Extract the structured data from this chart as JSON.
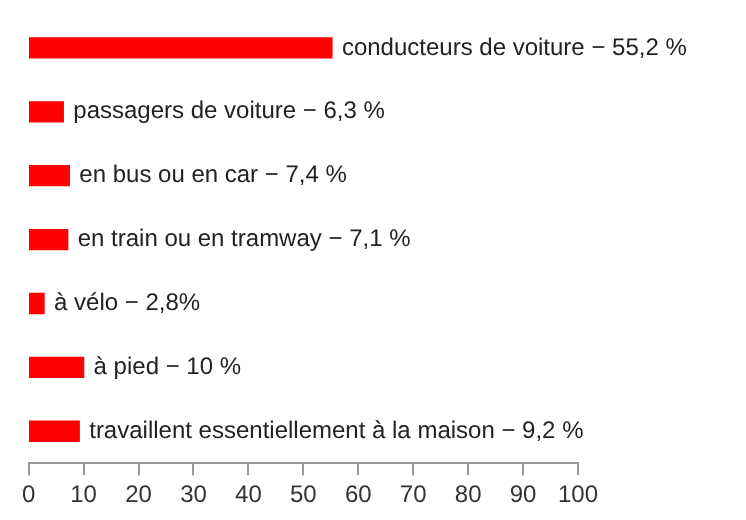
{
  "chart_data": {
    "type": "bar",
    "orientation": "horizontal",
    "categories": [
      "conducteurs de voiture − 55,2 %",
      "passagers de voiture − 6,3 %",
      "en bus ou en car − 7,4 %",
      "en train ou en tramway − 7,1 %",
      "à vélo − 2,8%",
      "à pied − 10 %",
      "travaillent essentiellement à la maison − 9,2 %"
    ],
    "values": [
      55.2,
      6.3,
      7.4,
      7.1,
      2.8,
      10,
      9.2
    ],
    "color": "#ff0000",
    "xlim": [
      0,
      100
    ],
    "xticks": [
      0,
      10,
      20,
      30,
      40,
      50,
      60,
      70,
      80,
      90,
      100
    ],
    "grid": false,
    "legend": false,
    "tick_labels": "x"
  }
}
